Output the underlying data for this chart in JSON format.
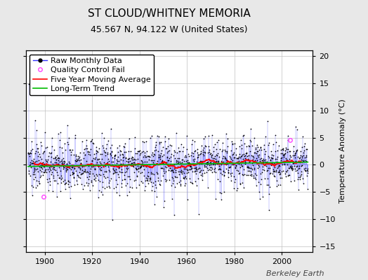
{
  "title": "ST CLOUD/WHITNEY MEMORIA",
  "subtitle": "45.567 N, 94.122 W (United States)",
  "ylabel": "Temperature Anomaly (°C)",
  "watermark": "Berkeley Earth",
  "year_start": 1893,
  "year_end": 2011,
  "ylim": [
    -16,
    21
  ],
  "yticks": [
    -15,
    -10,
    -5,
    0,
    5,
    10,
    15,
    20
  ],
  "xlim_start": 1892,
  "xlim_end": 2013,
  "raw_color": "#3333ff",
  "raw_marker_color": "#000000",
  "qc_fail_color": "#ff44ff",
  "moving_avg_color": "#ff0000",
  "trend_color": "#00bb00",
  "background_color": "#e8e8e8",
  "plot_bg_color": "#ffffff",
  "grid_color": "#c0c0c0",
  "seed": 137,
  "noise_scale": 2.2,
  "spike_count": 60,
  "spike_min": 2.5,
  "spike_max": 7.0,
  "moving_avg_window": 60,
  "qc_fail_points": [
    [
      1899.5,
      -5.8
    ],
    [
      2003.5,
      4.5
    ]
  ],
  "title_fontsize": 11,
  "subtitle_fontsize": 9,
  "legend_fontsize": 8,
  "tick_fontsize": 8,
  "ylabel_fontsize": 8,
  "watermark_fontsize": 8,
  "xticks": [
    1900,
    1920,
    1940,
    1960,
    1980,
    2000
  ]
}
